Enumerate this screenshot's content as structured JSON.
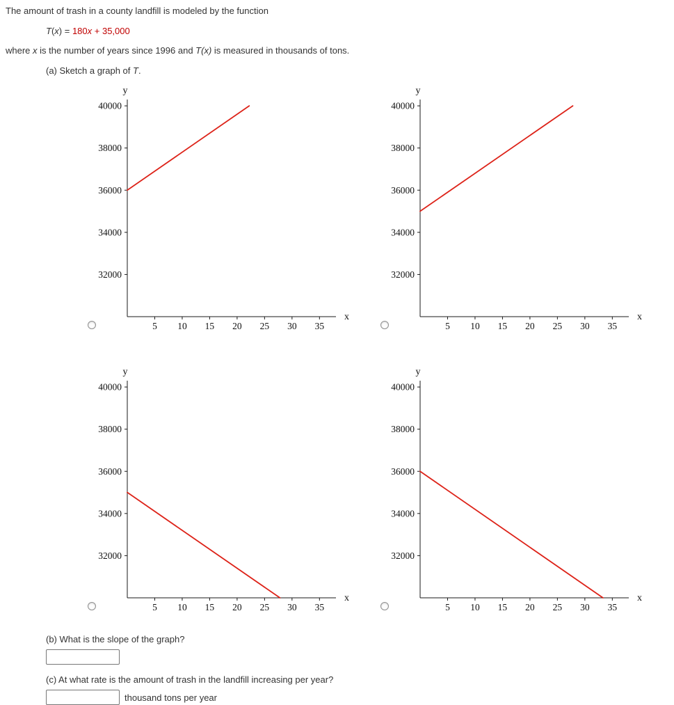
{
  "page": {
    "background": "#ffffff",
    "text_color": "#333333",
    "accent_red": "#c00000"
  },
  "question": {
    "intro": "The amount of trash in a county landfill is modeled by the function",
    "formula": {
      "lhs_segments": [
        {
          "text": "T",
          "italic": true
        },
        {
          "text": "(",
          "italic": false
        },
        {
          "text": "x",
          "italic": true
        },
        {
          "text": ") = ",
          "italic": false
        }
      ],
      "rhs_segments": [
        {
          "text": "180",
          "italic": false
        },
        {
          "text": "x",
          "italic": true
        },
        {
          "text": " + 35,000",
          "italic": false
        }
      ],
      "rhs_color": "#c00000"
    },
    "description_segments": [
      {
        "text": "where ",
        "italic": false
      },
      {
        "text": "x",
        "italic": true
      },
      {
        "text": " is the number of years since 1996 and ",
        "italic": false
      },
      {
        "text": "T(x)",
        "italic": true
      },
      {
        "text": " is measured in thousands of tons.",
        "italic": false
      }
    ],
    "part_a": {
      "label_segments": [
        {
          "text": "(a) Sketch a graph of ",
          "italic": false
        },
        {
          "text": "T",
          "italic": true
        },
        {
          "text": ".",
          "italic": false
        }
      ]
    },
    "part_b": {
      "label": "(b) What is the slope of the graph?",
      "input_value": ""
    },
    "part_c": {
      "label": "(c) At what rate is the amount of trash in the landfill increasing per year?",
      "input_value": "",
      "unit_label": "thousand tons per year"
    }
  },
  "chart_data": [
    {
      "type": "line",
      "option": 1,
      "selected": false,
      "equation": "y = 180x + 36000",
      "xlabel": "x",
      "ylabel": "y",
      "xlim": [
        0,
        38
      ],
      "ylim": [
        30000,
        40300
      ],
      "x_ticks": [
        5,
        10,
        15,
        20,
        25,
        30,
        35
      ],
      "y_ticks": [
        32000,
        34000,
        36000,
        38000,
        40000
      ],
      "line_color": "#dd2218",
      "points": [
        [
          0,
          36000
        ],
        [
          22.2,
          40000
        ]
      ]
    },
    {
      "type": "line",
      "option": 2,
      "selected": false,
      "equation": "y = 180x + 35000",
      "xlabel": "x",
      "ylabel": "y",
      "xlim": [
        0,
        38
      ],
      "ylim": [
        30000,
        40300
      ],
      "x_ticks": [
        5,
        10,
        15,
        20,
        25,
        30,
        35
      ],
      "y_ticks": [
        32000,
        34000,
        36000,
        38000,
        40000
      ],
      "line_color": "#dd2218",
      "points": [
        [
          0,
          35000
        ],
        [
          27.8,
          40000
        ]
      ]
    },
    {
      "type": "line",
      "option": 3,
      "selected": false,
      "equation": "y = -180x + 35000",
      "xlabel": "x",
      "ylabel": "y",
      "xlim": [
        0,
        38
      ],
      "ylim": [
        30000,
        40300
      ],
      "x_ticks": [
        5,
        10,
        15,
        20,
        25,
        30,
        35
      ],
      "y_ticks": [
        32000,
        34000,
        36000,
        38000,
        40000
      ],
      "line_color": "#dd2218",
      "points": [
        [
          0,
          35000
        ],
        [
          27.8,
          30000
        ]
      ]
    },
    {
      "type": "line",
      "option": 4,
      "selected": false,
      "equation": "y = -180x + 36000",
      "xlabel": "x",
      "ylabel": "y",
      "xlim": [
        0,
        38
      ],
      "ylim": [
        30000,
        40300
      ],
      "x_ticks": [
        5,
        10,
        15,
        20,
        25,
        30,
        35
      ],
      "y_ticks": [
        32000,
        34000,
        36000,
        38000,
        40000
      ],
      "line_color": "#dd2218",
      "points": [
        [
          0,
          36000
        ],
        [
          33.3,
          30000
        ]
      ]
    }
  ]
}
